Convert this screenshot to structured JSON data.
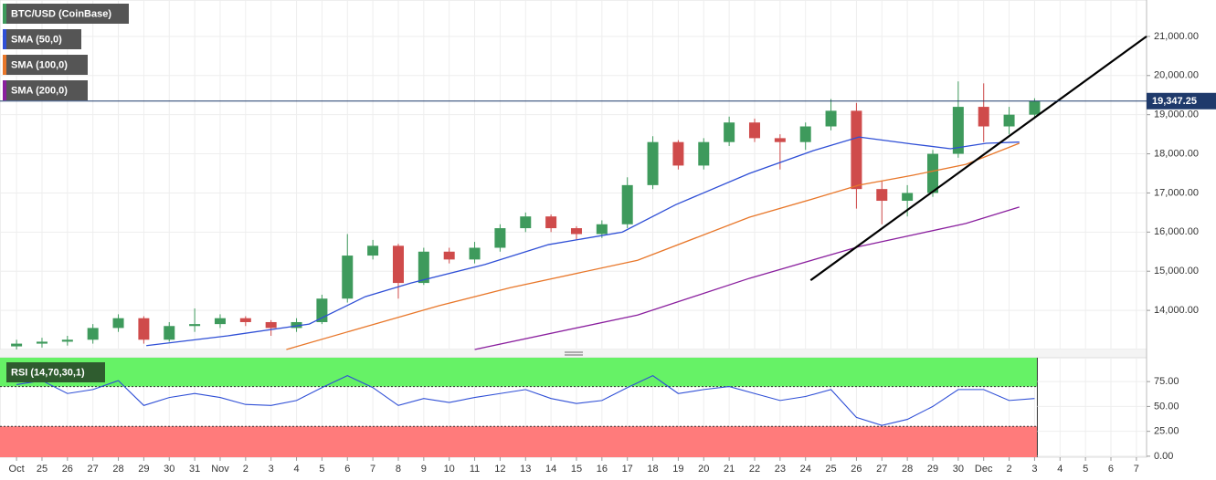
{
  "chart_data": [
    {
      "type": "candlestick",
      "name": "BTC/USD (CoinBase)",
      "up_color": "#3e9a5c",
      "down_color": "#cf4b4b",
      "x": [
        0,
        1,
        2,
        3,
        4,
        5,
        6,
        7,
        8,
        9,
        10,
        11,
        12,
        13,
        14,
        15,
        16,
        17,
        18,
        19,
        20,
        21,
        22,
        23,
        24,
        25,
        26,
        27,
        28,
        29,
        30,
        31,
        32,
        33,
        34,
        35,
        36,
        37,
        38,
        39,
        40
      ],
      "open": [
        13080,
        13150,
        13200,
        13250,
        13550,
        13800,
        13250,
        13600,
        13650,
        13800,
        13700,
        13550,
        13700,
        14300,
        15400,
        15650,
        14700,
        15500,
        15300,
        15600,
        16100,
        16400,
        16100,
        15950,
        16200,
        17200,
        18300,
        17700,
        18300,
        18800,
        18400,
        18300,
        18700,
        19100,
        17100,
        16800,
        17000,
        18000,
        19200,
        18700,
        19000
      ],
      "high": [
        13250,
        13300,
        13350,
        13650,
        13900,
        13850,
        13700,
        14050,
        13900,
        13850,
        13750,
        13800,
        14400,
        15950,
        15800,
        15700,
        15600,
        15600,
        15750,
        16200,
        16500,
        16450,
        16150,
        16300,
        17400,
        18450,
        18350,
        18400,
        18950,
        18900,
        18500,
        18800,
        19400,
        19300,
        17300,
        17200,
        18100,
        19850,
        19800,
        19200,
        19420
      ],
      "low": [
        13000,
        13050,
        13100,
        13150,
        13450,
        13150,
        13200,
        13450,
        13550,
        13600,
        13350,
        13450,
        13650,
        14200,
        15300,
        14300,
        14650,
        15200,
        15200,
        15500,
        16000,
        16000,
        15800,
        15850,
        16100,
        17100,
        17600,
        17600,
        18200,
        18300,
        17600,
        18100,
        18600,
        16600,
        16200,
        16400,
        16900,
        17900,
        18300,
        18500,
        18900
      ],
      "close": [
        13150,
        13200,
        13250,
        13550,
        13800,
        13250,
        13600,
        13650,
        13800,
        13700,
        13550,
        13700,
        14300,
        15400,
        15650,
        14700,
        15500,
        15300,
        15600,
        16100,
        16400,
        16100,
        15950,
        16200,
        17200,
        18300,
        17700,
        18300,
        18800,
        18400,
        18300,
        18700,
        19100,
        17100,
        16800,
        17000,
        18000,
        19200,
        18700,
        19000,
        19347.25
      ],
      "series": [
        {
          "name": "SMA (50,0)",
          "color": "#2f4fd6",
          "x": [
            5.1,
            8.3,
            11.5,
            13.7,
            15.5,
            18.4,
            20.9,
            23.8,
            25.9,
            28.8,
            31.3,
            33.1,
            35.2,
            36.7,
            38.1,
            39.4
          ],
          "values": [
            13100,
            13350,
            13650,
            14350,
            14700,
            15170,
            15680,
            16000,
            16700,
            17500,
            18080,
            18430,
            18250,
            18130,
            18270,
            18300
          ]
        },
        {
          "name": "SMA (100,0)",
          "color": "#e8772a",
          "x": [
            10.6,
            13.7,
            16.6,
            19.4,
            24.4,
            28.8,
            31.3,
            33.1,
            35.2,
            37.3,
            39.4
          ],
          "values": [
            13000,
            13580,
            14120,
            14580,
            15280,
            16380,
            16850,
            17200,
            17450,
            17730,
            18270
          ]
        },
        {
          "name": "SMA (200,0)",
          "color": "#8a1f9e",
          "x": [
            18,
            24.4,
            28.8,
            33.1,
            37.3,
            39.4
          ],
          "values": [
            13000,
            13880,
            14820,
            15630,
            16220,
            16640
          ]
        }
      ],
      "trendline": {
        "x": [
          31.2,
          44.4
        ],
        "values": [
          14770,
          21000
        ],
        "color": "#000000"
      },
      "last_price": {
        "value": 19347.25,
        "label": "19,347.25"
      },
      "xlim": [
        -0.65,
        44.4
      ],
      "ylim": [
        13000,
        21930
      ],
      "yticks": [
        {
          "value": 14000,
          "label": "14,000.00"
        },
        {
          "value": 15000,
          "label": "15,000.00"
        },
        {
          "value": 16000,
          "label": "16,000.00"
        },
        {
          "value": 17000,
          "label": "17,000.00"
        },
        {
          "value": 18000,
          "label": "18,000.00"
        },
        {
          "value": 19000,
          "label": "19,000.00"
        },
        {
          "value": 20000,
          "label": "20,000.00"
        },
        {
          "value": 21000,
          "label": "21,000.00"
        }
      ],
      "grid": true
    },
    {
      "type": "line",
      "title": "RSI (14,70,30,1)",
      "color": "#2f4fd6",
      "x": [
        0,
        1,
        2,
        3,
        4,
        5,
        6,
        7,
        8,
        9,
        10,
        11,
        12,
        13,
        14,
        15,
        16,
        17,
        18,
        19,
        20,
        21,
        22,
        23,
        24,
        25,
        26,
        27,
        28,
        29,
        30,
        31,
        32,
        33,
        34,
        35,
        36,
        37,
        38,
        39,
        40
      ],
      "values": [
        72,
        76,
        63,
        67,
        76,
        51,
        59,
        63,
        59,
        52,
        51,
        56,
        69,
        81,
        69,
        51,
        58,
        54,
        59,
        63,
        67,
        58,
        53,
        56,
        69,
        81,
        63,
        67,
        70,
        63,
        56,
        60,
        67,
        39,
        31,
        37,
        50,
        67,
        67,
        56,
        58
      ],
      "overbought": 70,
      "oversold": 30,
      "overbought_color": "#66f266",
      "oversold_color": "#ff7b7b",
      "xlim": [
        -0.65,
        44.4
      ],
      "ylim": [
        -1,
        99
      ],
      "yticks": [
        {
          "value": 0,
          "label": "0.00"
        },
        {
          "value": 25,
          "label": "25.00"
        },
        {
          "value": 50,
          "label": "50.00"
        },
        {
          "value": 75,
          "label": "75.00"
        }
      ],
      "xticks": [
        {
          "value": 0,
          "label": "Oct"
        },
        {
          "value": 1,
          "label": "25"
        },
        {
          "value": 2,
          "label": "26"
        },
        {
          "value": 3,
          "label": "27"
        },
        {
          "value": 4,
          "label": "28"
        },
        {
          "value": 5,
          "label": "29"
        },
        {
          "value": 6,
          "label": "30"
        },
        {
          "value": 7,
          "label": "31"
        },
        {
          "value": 8,
          "label": "Nov"
        },
        {
          "value": 9,
          "label": "2"
        },
        {
          "value": 10,
          "label": "3"
        },
        {
          "value": 11,
          "label": "4"
        },
        {
          "value": 12,
          "label": "5"
        },
        {
          "value": 13,
          "label": "6"
        },
        {
          "value": 14,
          "label": "7"
        },
        {
          "value": 15,
          "label": "8"
        },
        {
          "value": 16,
          "label": "9"
        },
        {
          "value": 17,
          "label": "10"
        },
        {
          "value": 18,
          "label": "11"
        },
        {
          "value": 19,
          "label": "12"
        },
        {
          "value": 20,
          "label": "13"
        },
        {
          "value": 21,
          "label": "14"
        },
        {
          "value": 22,
          "label": "15"
        },
        {
          "value": 23,
          "label": "16"
        },
        {
          "value": 24,
          "label": "17"
        },
        {
          "value": 25,
          "label": "18"
        },
        {
          "value": 26,
          "label": "19"
        },
        {
          "value": 27,
          "label": "20"
        },
        {
          "value": 28,
          "label": "21"
        },
        {
          "value": 29,
          "label": "22"
        },
        {
          "value": 30,
          "label": "23"
        },
        {
          "value": 31,
          "label": "24"
        },
        {
          "value": 32,
          "label": "25"
        },
        {
          "value": 33,
          "label": "26"
        },
        {
          "value": 34,
          "label": "27"
        },
        {
          "value": 35,
          "label": "28"
        },
        {
          "value": 36,
          "label": "29"
        },
        {
          "value": 37,
          "label": "30"
        },
        {
          "value": 38,
          "label": "Dec"
        },
        {
          "value": 39,
          "label": "2"
        },
        {
          "value": 40,
          "label": "3"
        },
        {
          "value": 41,
          "label": "4"
        },
        {
          "value": 42,
          "label": "5"
        },
        {
          "value": 43,
          "label": "6"
        },
        {
          "value": 44,
          "label": "7"
        }
      ],
      "grid": true
    }
  ]
}
